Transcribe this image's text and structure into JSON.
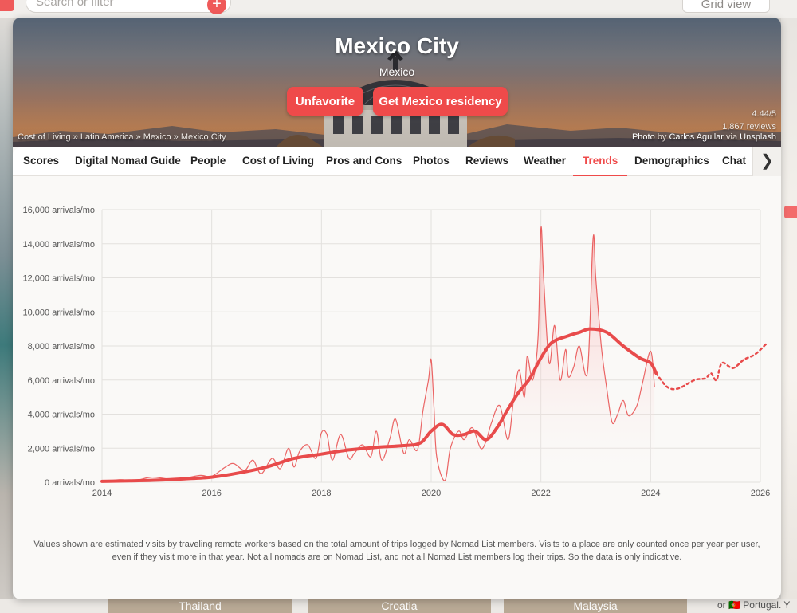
{
  "background": {
    "search_placeholder": "Search or filter",
    "view_toggle": "Grid view",
    "bottom_cities": [
      "Thailand",
      "Croatia",
      "Malaysia"
    ],
    "right_partial_text": "or 🇵🇹 Portugal. Y"
  },
  "header": {
    "city": "Mexico City",
    "country": "Mexico",
    "unfavorite_label": "Unfavorite",
    "residency_label": "Get Mexico residency",
    "breadcrumb": "Cost of Living » Latin America » Mexico » Mexico City",
    "rating": "4.44/5",
    "reviews": "1,867 reviews",
    "photo_prefix": "Photo",
    "photo_by": "by",
    "photographer": "Carlos Aguilar",
    "via": "via",
    "source": "Unsplash"
  },
  "tabs": [
    {
      "label": "Scores"
    },
    {
      "label": "Digital Nomad Guide"
    },
    {
      "label": "People"
    },
    {
      "label": "Cost of Living"
    },
    {
      "label": "Pros and Cons"
    },
    {
      "label": "Photos"
    },
    {
      "label": "Reviews"
    },
    {
      "label": "Weather"
    },
    {
      "label": "Trends",
      "active": true
    },
    {
      "label": "Demographics"
    },
    {
      "label": "Chat"
    }
  ],
  "colors": {
    "accent": "#ef4a4a",
    "series": "#e84b4b",
    "area_top": "#f7b2b2"
  },
  "chart_data": {
    "type": "line",
    "ylim": [
      0,
      16000
    ],
    "xlim": [
      2014,
      2026
    ],
    "y_ticks": [
      0,
      2000,
      4000,
      6000,
      8000,
      10000,
      12000,
      14000,
      16000
    ],
    "y_tick_labels": [
      "0 arrivals/mo",
      "2,000 arrivals/mo",
      "4,000 arrivals/mo",
      "6,000 arrivals/mo",
      "8,000 arrivals/mo",
      "10,000 arrivals/mo",
      "12,000 arrivals/mo",
      "14,000 arrivals/mo",
      "16,000 arrivals/mo"
    ],
    "x_ticks": [
      "2014",
      "2016",
      "2018",
      "2020",
      "2022",
      "2024",
      "2026"
    ],
    "grid": true,
    "series": [
      {
        "style": "monthly-area",
        "x": [
          2014.0,
          2014.3,
          2014.6,
          2014.9,
          2015.2,
          2015.5,
          2015.8,
          2016.0,
          2016.25,
          2016.4,
          2016.6,
          2016.75,
          2016.9,
          2017.1,
          2017.25,
          2017.4,
          2017.5,
          2017.6,
          2017.75,
          2017.9,
          2018.0,
          2018.1,
          2018.2,
          2018.35,
          2018.5,
          2018.6,
          2018.75,
          2018.9,
          2019.0,
          2019.1,
          2019.25,
          2019.35,
          2019.5,
          2019.6,
          2019.75,
          2019.85,
          2019.95,
          2020.0,
          2020.05,
          2020.1,
          2020.25,
          2020.35,
          2020.5,
          2020.6,
          2020.75,
          2020.9,
          2021.0,
          2021.1,
          2021.25,
          2021.4,
          2021.5,
          2021.6,
          2021.7,
          2021.75,
          2021.85,
          2021.95,
          2022.0,
          2022.05,
          2022.15,
          2022.25,
          2022.35,
          2022.45,
          2022.5,
          2022.6,
          2022.7,
          2022.85,
          2022.95,
          2023.0,
          2023.1,
          2023.2,
          2023.3,
          2023.4,
          2023.5,
          2023.6,
          2023.75,
          2023.85,
          2024.0,
          2024.07
        ],
        "values": [
          0,
          150,
          100,
          300,
          200,
          250,
          400,
          350,
          900,
          1100,
          700,
          1300,
          500,
          1400,
          800,
          2000,
          900,
          1800,
          2200,
          1400,
          2900,
          2800,
          1300,
          2800,
          1400,
          1700,
          2200,
          1500,
          3000,
          1300,
          2600,
          3700,
          1700,
          2500,
          1900,
          4200,
          6000,
          7200,
          4500,
          1500,
          100,
          2000,
          3000,
          2500,
          3200,
          2000,
          2400,
          3500,
          4500,
          2500,
          4800,
          6600,
          5000,
          7400,
          6000,
          8600,
          14900,
          12000,
          7000,
          9200,
          6000,
          7800,
          6200,
          6800,
          8000,
          6500,
          14300,
          12000,
          8000,
          5500,
          3500,
          4000,
          4800,
          3900,
          4500,
          5800,
          7700,
          5600
        ]
      },
      {
        "style": "trend",
        "x": [
          2014.0,
          2014.5,
          2015.0,
          2015.5,
          2016.0,
          2016.5,
          2017.0,
          2017.5,
          2018.0,
          2018.5,
          2019.0,
          2019.5,
          2019.8,
          2020.0,
          2020.2,
          2020.4,
          2020.6,
          2020.8,
          2021.0,
          2021.2,
          2021.4,
          2021.6,
          2021.8,
          2022.0,
          2022.2,
          2022.5,
          2022.7,
          2022.9,
          2023.2,
          2023.5,
          2023.8,
          2024.0,
          2024.1
        ],
        "values": [
          50,
          80,
          120,
          200,
          300,
          550,
          900,
          1400,
          1650,
          1900,
          2050,
          2150,
          2300,
          3000,
          3400,
          2800,
          2800,
          3000,
          2500,
          3200,
          4300,
          5300,
          6100,
          7300,
          8200,
          8600,
          8800,
          9000,
          8800,
          8000,
          7300,
          7000,
          6400
        ]
      },
      {
        "style": "forecast",
        "x": [
          2024.1,
          2024.3,
          2024.5,
          2024.8,
          2025.0,
          2025.1,
          2025.2,
          2025.3,
          2025.5,
          2025.7,
          2025.9,
          2026.1
        ],
        "values": [
          6400,
          5600,
          5500,
          6000,
          6100,
          6400,
          6000,
          7000,
          6700,
          7200,
          7500,
          8100
        ]
      }
    ]
  },
  "note": "Values shown are estimated visits by traveling remote workers based on the total amount of trips logged by Nomad List members. Visits to a place are only counted once per year per user, even if they visit more in that year. Not all nomads are on Nomad List, and not all Nomad List members log their trips. So the data is only indicative."
}
